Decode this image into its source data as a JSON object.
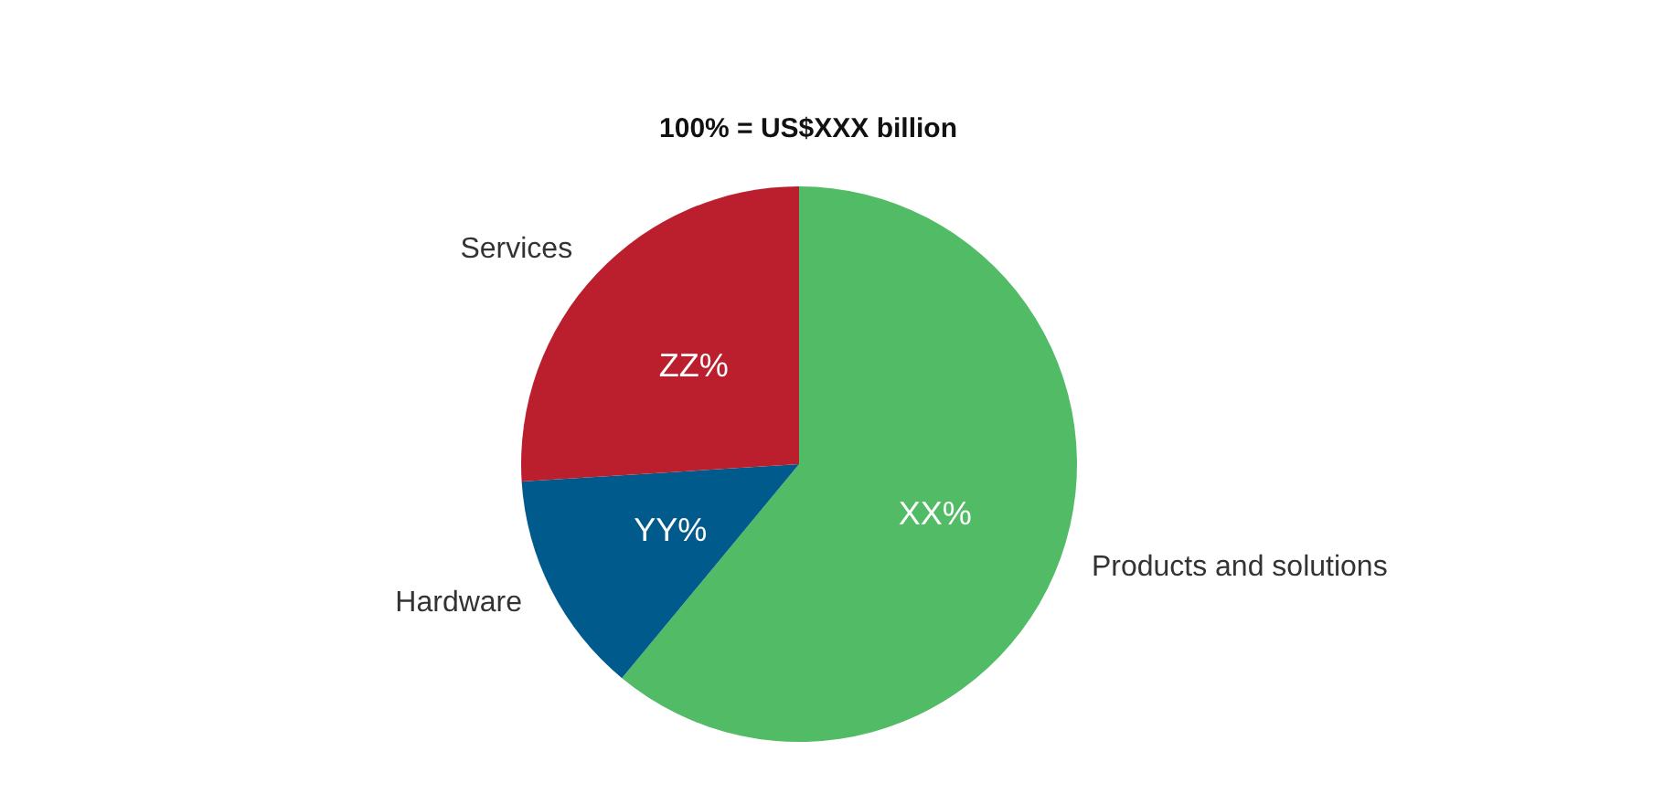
{
  "chart_data": {
    "type": "pie",
    "title": "100% = US$XXX billion",
    "categories": [
      "Products and solutions",
      "Hardware",
      "Services"
    ],
    "values": [
      61,
      13,
      26
    ],
    "colors": [
      "#52bb66",
      "#005a8c",
      "#bb1f2e"
    ],
    "value_labels": [
      "XX%",
      "YY%",
      "ZZ%"
    ]
  }
}
